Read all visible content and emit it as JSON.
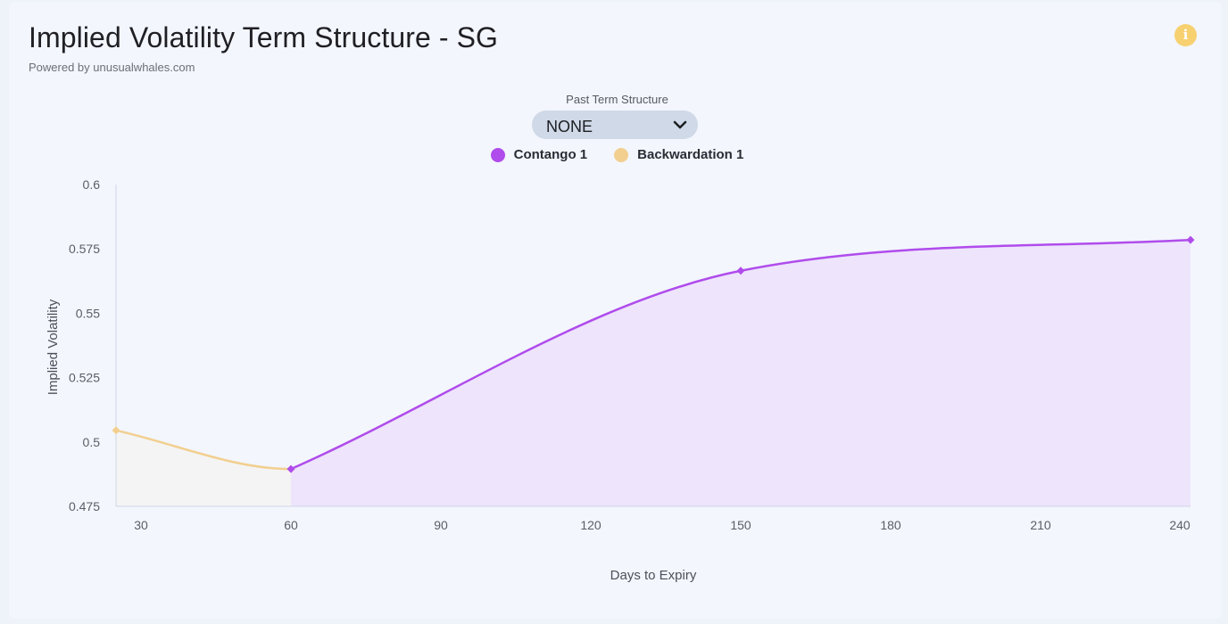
{
  "header": {
    "title": "Implied Volatility Term Structure - SG",
    "subtitle": "Powered by unusualwhales.com",
    "info_icon": "info-icon"
  },
  "controls": {
    "past_term_label": "Past Term Structure",
    "past_term_value": "NONE"
  },
  "colors": {
    "contango": "#b04cec",
    "contango_fill": "#eee4fc",
    "backwardation": "#f2cf8f",
    "backwardation_fill": "#f4f4f4",
    "info": "#f7d070"
  },
  "chart_data": {
    "type": "area",
    "xlabel": "Days to Expiry",
    "ylabel": "Implied Volatility",
    "xlim": [
      25,
      240
    ],
    "ylim": [
      0.475,
      0.6
    ],
    "x_ticks": [
      "30",
      "60",
      "90",
      "120",
      "150",
      "180",
      "210",
      "240"
    ],
    "y_ticks": [
      "0.6",
      "0.575",
      "0.55",
      "0.525",
      "0.5",
      "0.475"
    ],
    "grid": false,
    "legend_position": "top-center",
    "series": [
      {
        "name": "Backwardation 1",
        "x": [
          25,
          60
        ],
        "values": [
          0.5045,
          0.4895
        ]
      },
      {
        "name": "Contango 1",
        "x": [
          60,
          150,
          241
        ],
        "values": [
          0.4895,
          0.5665,
          0.5785
        ]
      }
    ]
  }
}
